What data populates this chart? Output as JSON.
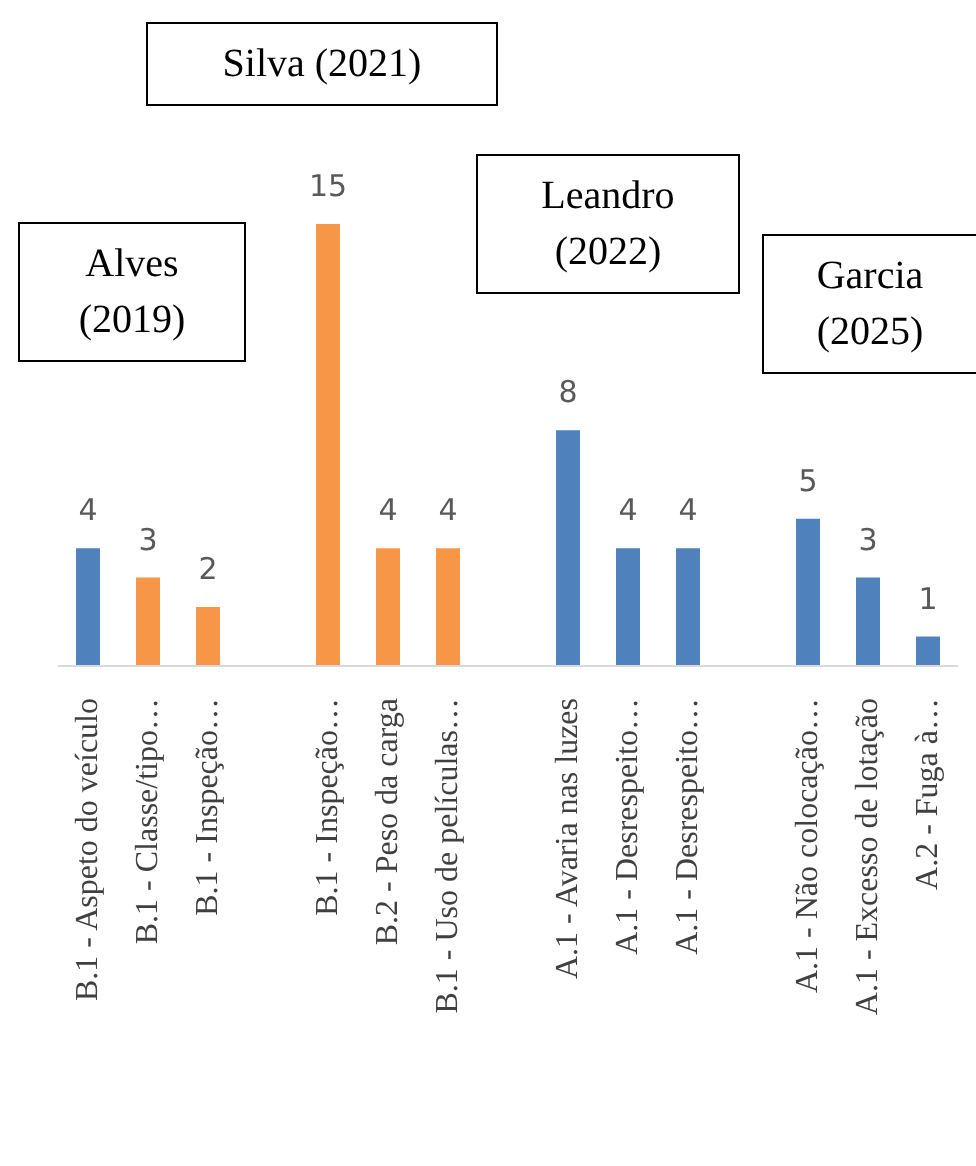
{
  "chart_data": {
    "type": "bar",
    "categories": [
      "B.1 - Aspeto do veículo",
      "B.1 - Classe/tipo…",
      "B.1 - Inspeção…",
      null,
      "B.1 - Inspeção…",
      "B.2 - Peso da carga",
      "B.1 - Uso de películas…",
      null,
      "A.1 - Avaria nas luzes",
      "A.1 - Desrespeito…",
      "A.1 - Desrespeito…",
      null,
      "A.1 - Não colocação…",
      "A.1 - Excesso de lotação",
      "A.2 - Fuga à…"
    ],
    "values": [
      4,
      3,
      2,
      null,
      15,
      4,
      4,
      null,
      8,
      4,
      4,
      null,
      5,
      3,
      1
    ],
    "colors": [
      "#4f81bd",
      "#f79646",
      "#f79646",
      null,
      "#f79646",
      "#f79646",
      "#f79646",
      null,
      "#4f81bd",
      "#4f81bd",
      "#4f81bd",
      null,
      "#4f81bd",
      "#4f81bd",
      "#4f81bd"
    ],
    "data_labels": true,
    "grid": false,
    "legend": false,
    "annotations": [
      "Alves (2019)",
      "Silva (2021)",
      "Leandro (2022)",
      "Garcia (2025)"
    ]
  }
}
